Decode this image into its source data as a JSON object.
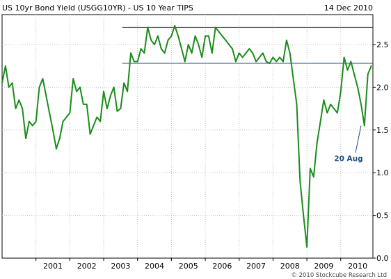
{
  "header": {
    "title": "US 10yr Bond Yield (USGG10YR) - US 10 Year TIPS",
    "date": "14 Dec 2010"
  },
  "copyright": "© 2010 Stockcube Research Ltd",
  "colors": {
    "series": "#1a8c1a",
    "reference_lines": "#1f4e79",
    "annotation": "#1f4e79",
    "grid": "#c0c0c0",
    "frame": "#000000"
  },
  "chart_data": {
    "type": "line",
    "title": "US 10yr Bond Yield (USGG10YR) - US 10 Year TIPS",
    "xlabel": "",
    "ylabel": "",
    "xlim": [
      2000.0,
      2010.95
    ],
    "ylim": [
      0.0,
      2.85
    ],
    "grid": true,
    "y_axis_side": "right",
    "x_ticks": [
      "2001",
      "2002",
      "2003",
      "2004",
      "2005",
      "2006",
      "2007",
      "2008",
      "2009",
      "2010"
    ],
    "y_ticks": [
      "0.0",
      "0.5",
      "1.0",
      "1.5",
      "2.0",
      "2.5"
    ],
    "series": [
      {
        "x": [
          2000.0,
          2000.1,
          2000.2,
          2000.3,
          2000.4,
          2000.5,
          2000.6,
          2000.7,
          2000.8,
          2000.9,
          2001.0,
          2001.1,
          2001.2,
          2001.3,
          2001.4,
          2001.5,
          2001.6,
          2001.7,
          2001.8,
          2001.9,
          2002.0,
          2002.1,
          2002.2,
          2002.3,
          2002.4,
          2002.5,
          2002.6,
          2002.7,
          2002.8,
          2002.9,
          2003.0,
          2003.1,
          2003.2,
          2003.3,
          2003.4,
          2003.5,
          2003.6,
          2003.7,
          2003.8,
          2003.9,
          2004.0,
          2004.1,
          2004.2,
          2004.3,
          2004.4,
          2004.5,
          2004.6,
          2004.7,
          2004.8,
          2004.9,
          2005.0,
          2005.1,
          2005.2,
          2005.3,
          2005.4,
          2005.5,
          2005.6,
          2005.7,
          2005.8,
          2005.9,
          2006.0,
          2006.1,
          2006.2,
          2006.3,
          2006.4,
          2006.5,
          2006.6,
          2006.7,
          2006.8,
          2006.9,
          2007.0,
          2007.1,
          2007.2,
          2007.3,
          2007.4,
          2007.5,
          2007.6,
          2007.7,
          2007.8,
          2007.9,
          2008.0,
          2008.1,
          2008.2,
          2008.3,
          2008.4,
          2008.5,
          2008.6,
          2008.7,
          2008.8,
          2008.9,
          2009.0,
          2009.1,
          2009.2,
          2009.3,
          2009.4,
          2009.5,
          2009.6,
          2009.7,
          2009.8,
          2009.9,
          2010.0,
          2010.1,
          2010.2,
          2010.3,
          2010.4,
          2010.5,
          2010.6,
          2010.7,
          2010.8,
          2010.9
        ],
        "y": [
          2.05,
          2.25,
          2.0,
          2.05,
          1.75,
          1.85,
          1.75,
          1.4,
          1.6,
          1.55,
          1.6,
          2.0,
          2.1,
          1.9,
          1.7,
          1.5,
          1.28,
          1.4,
          1.6,
          1.65,
          1.7,
          2.1,
          1.95,
          2.0,
          1.8,
          1.8,
          1.45,
          1.55,
          1.65,
          1.6,
          1.95,
          1.75,
          1.9,
          2.0,
          1.72,
          1.75,
          2.05,
          1.95,
          2.4,
          2.3,
          2.3,
          2.45,
          2.4,
          2.7,
          2.55,
          2.5,
          2.6,
          2.45,
          2.4,
          2.55,
          2.6,
          2.72,
          2.6,
          2.45,
          2.3,
          2.5,
          2.4,
          2.6,
          2.5,
          2.35,
          2.6,
          2.6,
          2.4,
          2.7,
          2.65,
          2.6,
          2.55,
          2.5,
          2.45,
          2.3,
          2.4,
          2.35,
          2.4,
          2.45,
          2.4,
          2.3,
          2.35,
          2.4,
          2.3,
          2.28,
          2.35,
          2.3,
          2.35,
          2.3,
          2.55,
          2.4,
          2.1,
          1.8,
          0.9,
          0.5,
          0.13,
          1.05,
          0.95,
          1.35,
          1.6,
          1.85,
          1.7,
          1.8,
          1.75,
          1.7,
          1.95,
          2.35,
          2.2,
          2.3,
          2.15,
          2.0,
          1.8,
          1.55,
          2.15,
          2.25
        ],
        "color": "#1a8c1a"
      }
    ],
    "reference_lines": [
      {
        "y": 2.7,
        "x_from": 2003.55,
        "x_to": 2010.95
      },
      {
        "y": 2.28,
        "x_from": 2003.55,
        "x_to": 2010.95
      }
    ],
    "annotations": [
      {
        "text": "20 Aug",
        "x": 2010.6,
        "y": 1.55
      }
    ]
  }
}
